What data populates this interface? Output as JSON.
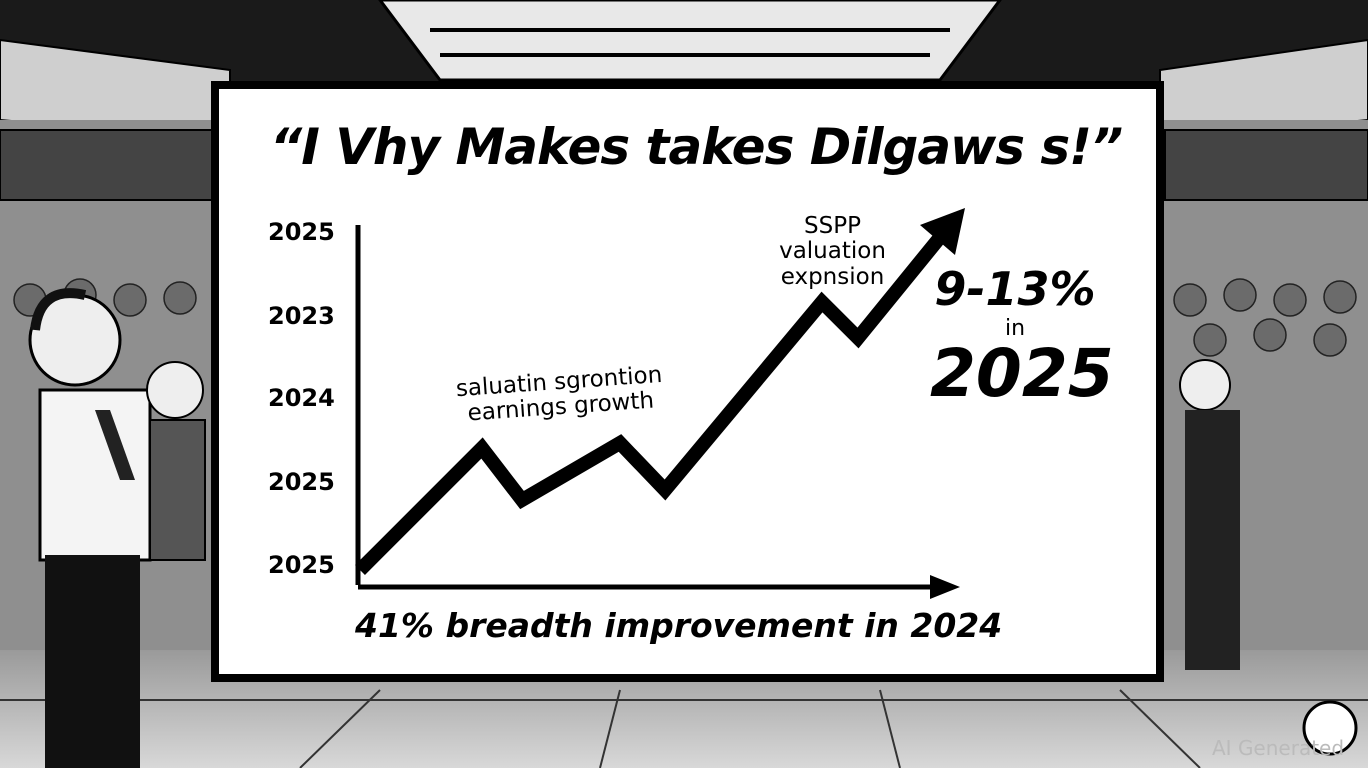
{
  "billboard": {
    "title": "“I Vhy Makes takes Dilgaws s!”",
    "y_labels": [
      "2025",
      "2023",
      "2024",
      "2025",
      "2025"
    ],
    "upper_annotation": [
      "SSPP",
      "valuation",
      "expnsion"
    ],
    "lower_annotation": [
      "saluatin sgrontion",
      "earnings growth"
    ],
    "side_note": [
      "9-13%",
      "in",
      "2025"
    ],
    "footer": "41% breadth improvement in 2024"
  },
  "watermark": "AI Generated"
}
